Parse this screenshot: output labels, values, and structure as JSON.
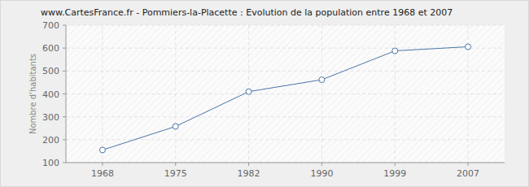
{
  "chart_data": {
    "type": "line",
    "title": "www.CartesFrance.fr - Pommiers-la-Placette : Evolution de la population entre 1968 et 2007",
    "y_label": "Nombre d'habitants",
    "categories": [
      "1968",
      "1975",
      "1982",
      "1990",
      "1999",
      "2007"
    ],
    "values": [
      155,
      258,
      410,
      462,
      588,
      606
    ],
    "color": "#4a76a8",
    "marker": "circle",
    "ylim": [
      100,
      700
    ],
    "yticks": [
      100,
      200,
      300,
      400,
      500,
      600,
      700
    ],
    "grid": true
  }
}
